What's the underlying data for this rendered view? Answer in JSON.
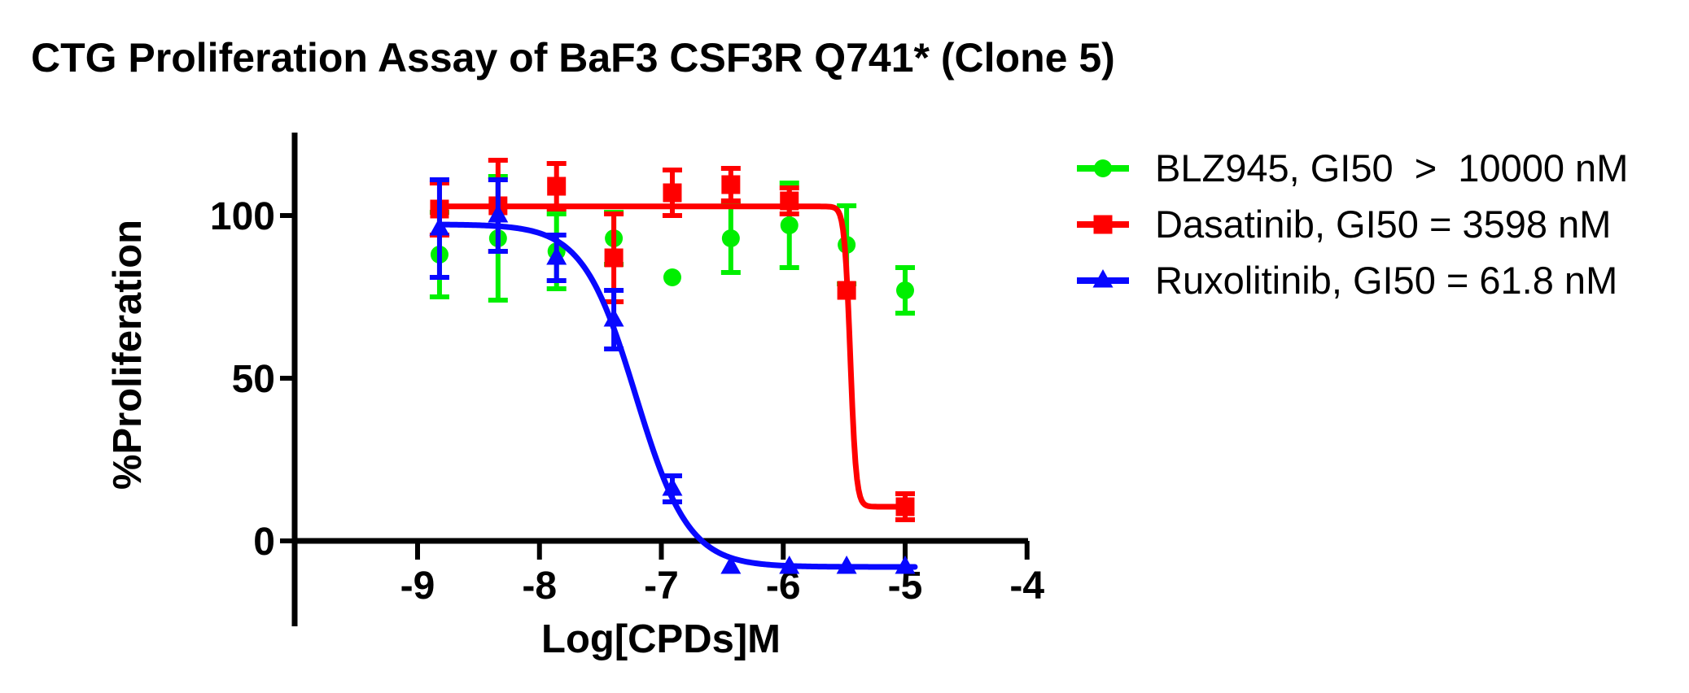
{
  "chart_data": {
    "type": "scatter",
    "title": "CTG Proliferation Assay of BaF3 CSF3R Q741* (Clone 5)",
    "xlabel": "Log[CPDs]M",
    "ylabel": "%Proliferation",
    "x_ticks": [
      -9,
      -8,
      -7,
      -6,
      -5,
      -4
    ],
    "y_ticks": [
      0,
      50,
      100
    ],
    "xlim": [
      -10,
      -3.95
    ],
    "ylim": [
      -26,
      126
    ],
    "grid": false,
    "legend_position": "right",
    "x_log_doses": [
      -8.82,
      -8.34,
      -7.86,
      -7.39,
      -6.91,
      -6.43,
      -5.95,
      -5.48,
      -5.0
    ],
    "series": [
      {
        "name": "BLZ945",
        "legend_label": "BLZ945, GI50  >  10000 nM",
        "color": "#00ef00",
        "marker": "circle",
        "values": [
          88,
          93,
          89,
          93,
          81,
          93,
          97,
          91,
          77
        ],
        "errors": [
          13,
          19,
          11.5,
          8,
          0,
          10.5,
          13,
          12,
          7
        ],
        "curve": null
      },
      {
        "name": "Dasatinib",
        "legend_label": "Dasatinib, GI50 = 3598 nM",
        "color": "#ff0000",
        "marker": "square",
        "values": [
          102,
          103,
          109,
          87,
          107,
          109.5,
          104.5,
          77,
          10.5
        ],
        "errors": [
          8,
          14,
          7,
          13.5,
          7,
          5,
          4,
          0,
          4
        ],
        "curve": {
          "top": 102.8,
          "bottom": 10.5,
          "log_ec50": -5.45,
          "hill": 18,
          "x_from": -8.82,
          "x_to": -5.0
        }
      },
      {
        "name": "Ruxolitinib",
        "legend_label": "Ruxolitinib, GI50 = 61.8 nM",
        "color": "#0808ff",
        "marker": "triangle",
        "values": [
          96,
          100,
          87,
          68,
          16,
          -8,
          -8,
          -8,
          -8
        ],
        "errors": [
          15,
          11,
          7,
          9,
          4,
          0,
          0,
          0,
          0
        ],
        "curve": {
          "top": 97.3,
          "bottom": -8,
          "log_ec50": -7.21,
          "hill": 2,
          "x_from": -8.82,
          "x_to": -4.92
        }
      }
    ]
  }
}
